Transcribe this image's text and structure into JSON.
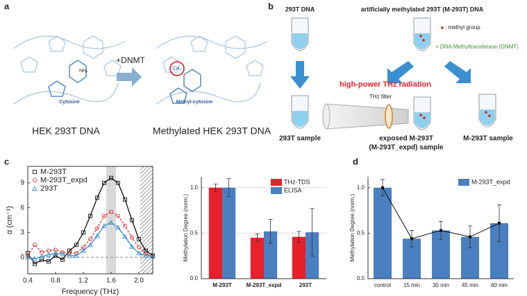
{
  "panel_labels": [
    "a",
    "b",
    "c",
    "d"
  ],
  "panel_a": {
    "cytosine": "Cytosine",
    "nh2": "NH₂",
    "methyl_cytosine": "Methyl-cytosine",
    "ch3": "CH₃",
    "arrow_label": "+DNMT",
    "left_caption": "HEK 293T DNA",
    "right_caption": "Methylated HEK 293T DNA"
  },
  "panel_b": {
    "left_title": "293T DNA",
    "right_title": "artificially methylated 293T (M-293T) DNA",
    "methyl_legend": ": methyl group",
    "enzyme": "+ DNA Methyltransferase (DNMT)",
    "radiation": "high-power THz radiation",
    "filter": "THz filter",
    "left_sample": "293T sample",
    "exposed_sample": [
      "exposed M-293T",
      "(M-293T_expd) sample"
    ],
    "right_sample": "M-293T sample"
  },
  "chart_data": [
    {
      "type": "line",
      "x_label": "Frequency (THz)",
      "y_label": "α (cm⁻¹)",
      "xlim": [
        0.4,
        2.2
      ],
      "ylim": [
        -2,
        11
      ],
      "xticks": [
        0.4,
        0.8,
        1.2,
        1.6,
        {
          "value": 2,
          "label": "2.0"
        }
      ],
      "yticks": [
        0,
        3,
        6,
        9
      ],
      "highlight_band": [
        1.53,
        1.67
      ],
      "hatched_band": [
        2.02,
        2.2
      ],
      "reference_line": 0,
      "legend": "upper left",
      "series": [
        {
          "name": "M-293T",
          "color": "#111111",
          "marker": "square",
          "x": [
            0.4,
            0.5,
            0.6,
            0.7,
            0.8,
            0.9,
            1.0,
            1.1,
            1.2,
            1.3,
            1.4,
            1.5,
            1.6,
            1.7,
            1.8,
            1.9,
            2.0,
            2.1,
            2.2
          ],
          "values": [
            0.5,
            -0.8,
            -0.3,
            -0.5,
            0.2,
            -0.3,
            0.8,
            1.5,
            3.0,
            5.0,
            7.2,
            9.0,
            9.6,
            9.0,
            7.0,
            4.5,
            2.2,
            0.8,
            0.2
          ]
        },
        {
          "name": "M-293T_expd",
          "color": "#e8373b",
          "marker": "circle",
          "x": [
            0.4,
            0.5,
            0.6,
            0.7,
            0.8,
            0.9,
            1.0,
            1.1,
            1.2,
            1.3,
            1.4,
            1.5,
            1.6,
            1.7,
            1.8,
            1.9,
            2.0,
            2.1,
            2.2
          ],
          "values": [
            0.2,
            1.5,
            0.6,
            0.8,
            0.9,
            0.6,
            0.5,
            0.5,
            1.2,
            2.2,
            3.5,
            5.0,
            5.5,
            5.0,
            3.8,
            2.4,
            1.2,
            0.4,
            0.1
          ]
        },
        {
          "name": "293T",
          "color": "#3a8fd0",
          "marker": "triangle",
          "x": [
            0.4,
            0.5,
            0.6,
            0.7,
            0.8,
            0.9,
            1.0,
            1.1,
            1.2,
            1.3,
            1.4,
            1.5,
            1.6,
            1.7,
            1.8,
            1.9,
            2.0,
            2.1,
            2.2
          ],
          "values": [
            0.0,
            -0.2,
            0.1,
            0.3,
            0.5,
            0.4,
            0.2,
            0.2,
            0.8,
            1.5,
            2.6,
            3.8,
            4.2,
            3.6,
            2.5,
            1.3,
            0.5,
            0.2,
            0.1
          ]
        }
      ]
    },
    {
      "type": "bar",
      "y_label": "Methylation Degree (norm.)",
      "categories": [
        "M-293T",
        "M-293T_expd",
        "293T"
      ],
      "ylim": [
        0,
        1.12
      ],
      "yticks": [
        {
          "value": 0,
          "label": "0.0"
        },
        0.5,
        {
          "value": 1,
          "label": "1.0"
        }
      ],
      "grid": true,
      "legend": "upper right",
      "series": [
        {
          "name": "THz-TDS",
          "color": "#e8202a",
          "values": [
            1.0,
            0.45,
            0.46
          ],
          "errors": [
            0.04,
            0.04,
            0.06
          ]
        },
        {
          "name": "ELISA",
          "color": "#4a7fc0",
          "values": [
            1.0,
            0.52,
            0.51
          ],
          "errors": [
            0.1,
            0.13,
            0.26
          ]
        }
      ]
    },
    {
      "type": "bar",
      "y_label": "Methylation Degree (norm.)",
      "categories": [
        "control",
        "15 min",
        "30 min",
        "45 min",
        "60 min"
      ],
      "ylim": [
        0,
        1.12
      ],
      "yticks": [
        {
          "value": 0,
          "label": "0.0"
        },
        0.5,
        {
          "value": 1,
          "label": "1.0"
        }
      ],
      "grid": false,
      "legend": "upper right",
      "overlay_line": true,
      "series": [
        {
          "name": "M-293T_expd",
          "color": "#4a7fc0",
          "values": [
            1.0,
            0.44,
            0.53,
            0.46,
            0.61
          ],
          "errors": [
            0.09,
            0.09,
            0.1,
            0.12,
            0.2
          ]
        }
      ]
    }
  ]
}
